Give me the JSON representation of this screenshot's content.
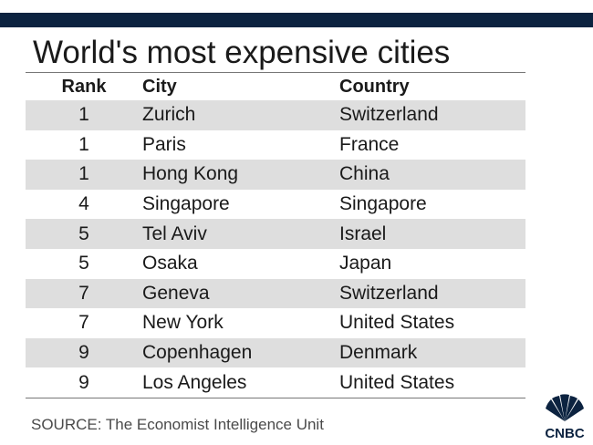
{
  "header": {
    "title": "World's most expensive cities"
  },
  "chart_data": {
    "type": "table",
    "title": "World's most expensive cities",
    "columns": [
      "Rank",
      "City",
      "Country"
    ],
    "rows": [
      {
        "rank": "1",
        "city": "Zurich",
        "country": "Switzerland"
      },
      {
        "rank": "1",
        "city": "Paris",
        "country": "France"
      },
      {
        "rank": "1",
        "city": "Hong Kong",
        "country": "China"
      },
      {
        "rank": "4",
        "city": "Singapore",
        "country": "Singapore"
      },
      {
        "rank": "5",
        "city": "Tel Aviv",
        "country": "Israel"
      },
      {
        "rank": "5",
        "city": "Osaka",
        "country": "Japan"
      },
      {
        "rank": "7",
        "city": "Geneva",
        "country": "Switzerland"
      },
      {
        "rank": "7",
        "city": "New York",
        "country": "United States"
      },
      {
        "rank": "9",
        "city": "Copenhagen",
        "country": "Denmark"
      },
      {
        "rank": "9",
        "city": "Los Angeles",
        "country": "United States"
      }
    ]
  },
  "footer": {
    "source": "SOURCE: The Economist Intelligence Unit",
    "logo_text": "CNBC"
  },
  "colors": {
    "top_bar": "#0c2340",
    "row_shade": "#dedede",
    "logo": "#0c2340"
  }
}
